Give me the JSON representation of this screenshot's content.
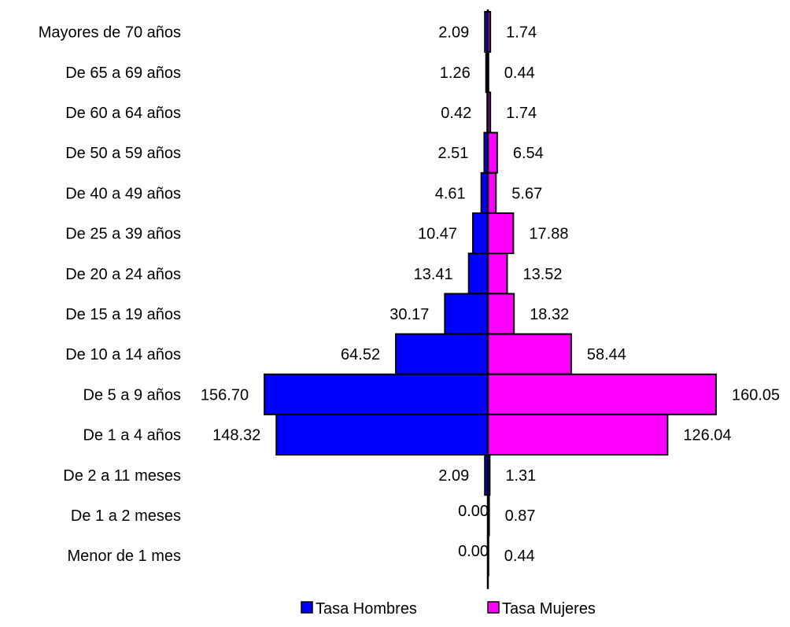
{
  "chart_data": {
    "type": "bar",
    "orientation": "horizontal-population-pyramid",
    "categories": [
      "Mayores de 70 años",
      "De 65 a 69 años",
      "De 60 a 64 años",
      "De 50 a 59 años",
      "De 40 a 49 años",
      "De 25 a 39 años",
      "De 20 a 24 años",
      "De 15 a 19 años",
      "De 10 a 14 años",
      "De 5 a 9 años",
      "De 1 a 4 años",
      "De 2 a 11 meses",
      "De 1 a 2 meses",
      "Menor de 1 mes"
    ],
    "series": [
      {
        "name": "Tasa Hombres",
        "color": "#0000FF",
        "side": "left",
        "values": [
          2.09,
          1.26,
          0.42,
          2.51,
          4.61,
          10.47,
          13.41,
          30.17,
          64.52,
          156.7,
          148.32,
          2.09,
          0.0,
          0.0
        ],
        "labels": [
          "2.09",
          "1.26",
          "0.42",
          "2.51",
          "4.61",
          "10.47",
          "13.41",
          "30.17",
          "64.52",
          "156.70",
          "148.32",
          "2.09",
          "0.00",
          "0.00"
        ]
      },
      {
        "name": "Tasa Mujeres",
        "color": "#FF00FF",
        "side": "right",
        "values": [
          1.74,
          0.44,
          1.74,
          6.54,
          5.67,
          17.88,
          13.52,
          18.32,
          58.44,
          160.05,
          126.04,
          1.31,
          0.87,
          0.44
        ],
        "labels": [
          "1.74",
          "0.44",
          "1.74",
          "6.54",
          "5.67",
          "17.88",
          "13.52",
          "18.32",
          "58.44",
          "160.05",
          "126.04",
          "1.31",
          "0.87",
          "0.44"
        ]
      }
    ],
    "xlim": [
      -160.05,
      160.05
    ],
    "grid": false,
    "legend_position": "bottom"
  }
}
